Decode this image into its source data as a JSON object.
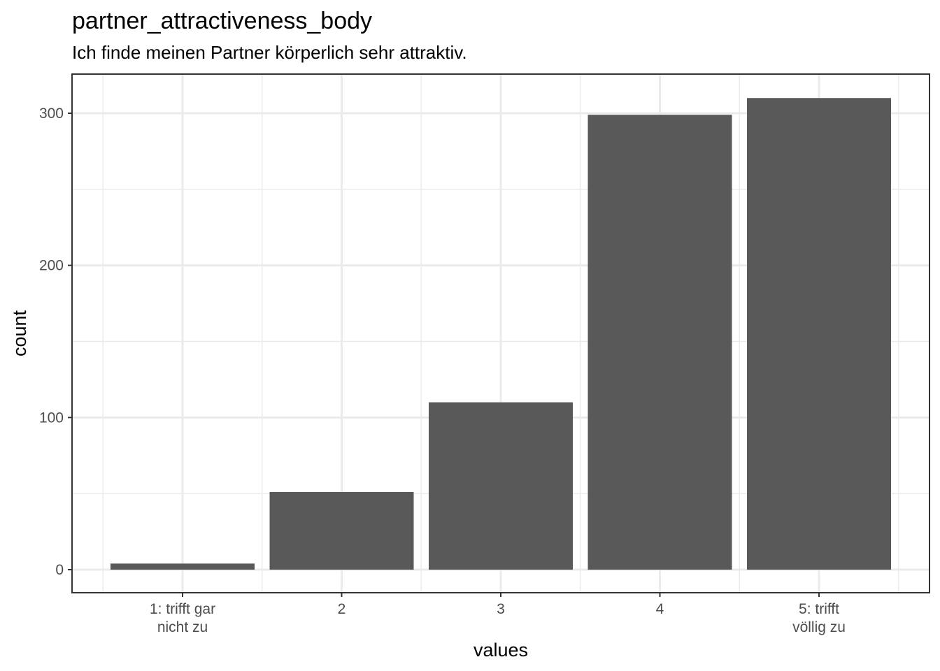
{
  "chart_data": {
    "type": "bar",
    "title": "partner_attractiveness_body",
    "subtitle": "Ich finde meinen Partner körperlich sehr attraktiv.",
    "xlabel": "values",
    "ylabel": "count",
    "categories": [
      [
        "1: trifft gar",
        "nicht zu"
      ],
      [
        "2"
      ],
      [
        "3"
      ],
      [
        "4"
      ],
      [
        "5: trifft",
        "völlig zu"
      ]
    ],
    "values": [
      4,
      51,
      110,
      299,
      310
    ],
    "ylim": [
      -15,
      325
    ],
    "yticks": [
      0,
      100,
      200,
      300
    ],
    "yminor": [
      50,
      150,
      250
    ],
    "grid": true,
    "bar_color": "#595959",
    "grid_color": "#ebebeb",
    "border_color": "#333333"
  }
}
